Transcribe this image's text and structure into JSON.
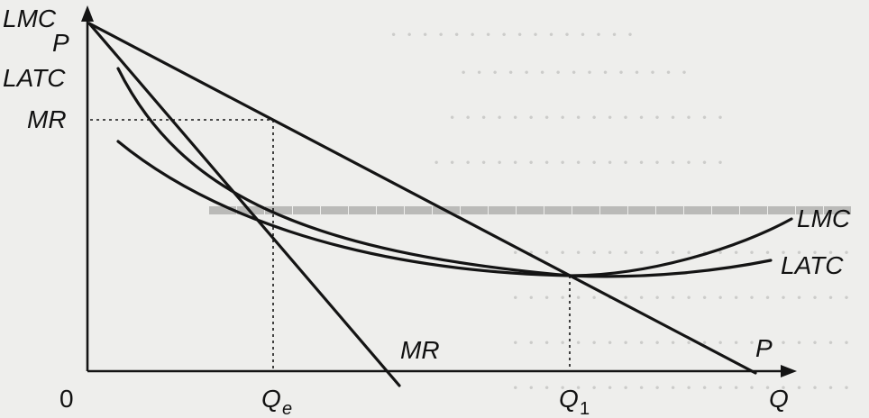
{
  "diagram": {
    "axis_labels": {
      "y_top": "LMC",
      "y_p": "P",
      "y_latc": "LATC",
      "y_mr": "MR",
      "origin": "0",
      "x_end": "Q"
    },
    "x_ticks": {
      "qe_base": "Q",
      "qe_sub": "e",
      "q1_base": "Q",
      "q1_sub": "1"
    },
    "curve_labels": {
      "lmc": "LMC",
      "latc": "LATC",
      "mr": "MR",
      "demand": "P"
    }
  },
  "colors": {
    "ink": "#141414",
    "paper": "#eeeeec",
    "bleed": "#c9c9c7"
  }
}
